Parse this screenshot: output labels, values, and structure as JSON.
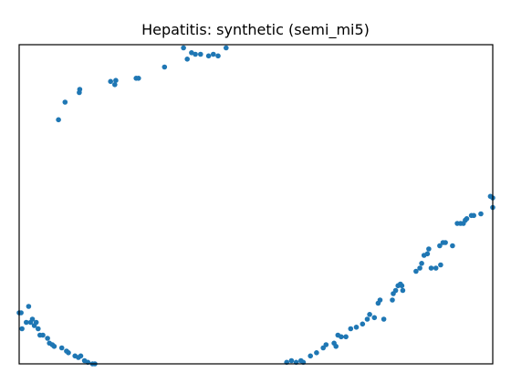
{
  "chart_data": {
    "type": "scatter",
    "title": "Hepatitis: synthetic (semi_mi5)",
    "xlabel": "",
    "ylabel": "",
    "xlim": [
      0,
      1
    ],
    "ylim": [
      0,
      1
    ],
    "grid": false,
    "axis_ticks": false,
    "marker_color": "#1f77b4",
    "series": [
      {
        "points": [
          [
            0.0,
            0.16
          ],
          [
            0.004,
            0.16
          ],
          [
            0.006,
            0.11
          ],
          [
            0.015,
            0.13
          ],
          [
            0.02,
            0.18
          ],
          [
            0.024,
            0.13
          ],
          [
            0.028,
            0.14
          ],
          [
            0.032,
            0.12
          ],
          [
            0.036,
            0.13
          ],
          [
            0.04,
            0.11
          ],
          [
            0.044,
            0.09
          ],
          [
            0.05,
            0.09
          ],
          [
            0.06,
            0.08
          ],
          [
            0.064,
            0.065
          ],
          [
            0.07,
            0.06
          ],
          [
            0.074,
            0.055
          ],
          [
            0.09,
            0.05
          ],
          [
            0.1,
            0.04
          ],
          [
            0.104,
            0.035
          ],
          [
            0.118,
            0.025
          ],
          [
            0.125,
            0.02
          ],
          [
            0.13,
            0.025
          ],
          [
            0.138,
            0.01
          ],
          [
            0.145,
            0.005
          ],
          [
            0.155,
            0.0
          ],
          [
            0.16,
            0.0
          ],
          [
            0.083,
            0.765
          ],
          [
            0.097,
            0.82
          ],
          [
            0.127,
            0.85
          ],
          [
            0.128,
            0.86
          ],
          [
            0.193,
            0.885
          ],
          [
            0.202,
            0.875
          ],
          [
            0.204,
            0.888
          ],
          [
            0.247,
            0.895
          ],
          [
            0.252,
            0.895
          ],
          [
            0.307,
            0.93
          ],
          [
            0.347,
            0.99
          ],
          [
            0.355,
            0.955
          ],
          [
            0.364,
            0.975
          ],
          [
            0.372,
            0.97
          ],
          [
            0.383,
            0.97
          ],
          [
            0.4,
            0.965
          ],
          [
            0.41,
            0.97
          ],
          [
            0.42,
            0.965
          ],
          [
            0.437,
            0.99
          ],
          [
            0.565,
            0.005
          ],
          [
            0.575,
            0.01
          ],
          [
            0.585,
            0.005
          ],
          [
            0.595,
            0.01
          ],
          [
            0.6,
            0.005
          ],
          [
            0.615,
            0.025
          ],
          [
            0.628,
            0.035
          ],
          [
            0.642,
            0.05
          ],
          [
            0.648,
            0.06
          ],
          [
            0.665,
            0.065
          ],
          [
            0.669,
            0.055
          ],
          [
            0.673,
            0.09
          ],
          [
            0.68,
            0.085
          ],
          [
            0.69,
            0.085
          ],
          [
            0.7,
            0.11
          ],
          [
            0.712,
            0.115
          ],
          [
            0.725,
            0.125
          ],
          [
            0.735,
            0.14
          ],
          [
            0.74,
            0.155
          ],
          [
            0.75,
            0.145
          ],
          [
            0.762,
            0.2
          ],
          [
            0.758,
            0.19
          ],
          [
            0.77,
            0.14
          ],
          [
            0.788,
            0.2
          ],
          [
            0.79,
            0.22
          ],
          [
            0.795,
            0.23
          ],
          [
            0.8,
            0.245
          ],
          [
            0.808,
            0.245
          ],
          [
            0.81,
            0.23
          ],
          [
            0.805,
            0.25
          ],
          [
            0.838,
            0.29
          ],
          [
            0.846,
            0.3
          ],
          [
            0.85,
            0.315
          ],
          [
            0.855,
            0.34
          ],
          [
            0.862,
            0.345
          ],
          [
            0.865,
            0.36
          ],
          [
            0.87,
            0.3
          ],
          [
            0.88,
            0.3
          ],
          [
            0.89,
            0.31
          ],
          [
            0.888,
            0.37
          ],
          [
            0.895,
            0.38
          ],
          [
            0.9,
            0.38
          ],
          [
            0.915,
            0.37
          ],
          [
            0.925,
            0.44
          ],
          [
            0.932,
            0.44
          ],
          [
            0.938,
            0.44
          ],
          [
            0.942,
            0.45
          ],
          [
            0.945,
            0.455
          ],
          [
            0.955,
            0.465
          ],
          [
            0.96,
            0.465
          ],
          [
            0.975,
            0.47
          ],
          [
            1.0,
            0.49
          ],
          [
            1.0,
            0.52
          ],
          [
            0.995,
            0.525
          ]
        ]
      }
    ]
  }
}
